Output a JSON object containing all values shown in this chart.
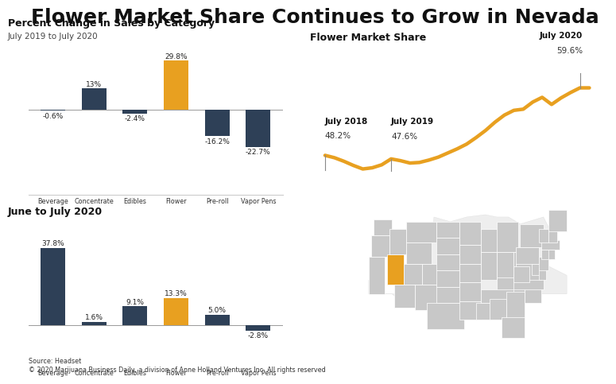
{
  "title": "Flower Market Share Continues to Grow in Nevada",
  "title_fontsize": 18,
  "background_color": "#ffffff",
  "dark_blue": "#2e4057",
  "orange": "#e8a020",
  "map_gray": "#c8c8c8",
  "bar_categories": [
    "Beverage",
    "Concentrate",
    "Edibles",
    "Flower",
    "Pre-roll",
    "Vapor Pens"
  ],
  "chart1_title": "Percent Change in Sales by Category",
  "chart1_subtitle": "July 2019 to July 2020",
  "chart1_values": [
    -0.6,
    13.0,
    -2.4,
    29.8,
    -16.2,
    -22.7
  ],
  "chart1_labels": [
    "-0.6%",
    "13%",
    "-2.4%",
    "29.8%",
    "-16.2%",
    "-22.7%"
  ],
  "chart2_title": "June to July 2020",
  "chart2_values": [
    37.8,
    1.6,
    9.1,
    13.3,
    5.0,
    -2.8
  ],
  "chart2_labels": [
    "37.8%",
    "1.6%",
    "9.1%",
    "13.3%",
    "5.0%",
    "-2.8%"
  ],
  "line_title": "Flower Market Share",
  "line_x": [
    0,
    1,
    2,
    3,
    4,
    5,
    6,
    7,
    8,
    9,
    10,
    11,
    12,
    13,
    14,
    15,
    16,
    17,
    18,
    19,
    20,
    21,
    22,
    23,
    24,
    25,
    26,
    27,
    28
  ],
  "line_y": [
    48.2,
    47.8,
    47.2,
    46.5,
    45.9,
    46.1,
    46.6,
    47.6,
    47.3,
    46.9,
    47.0,
    47.4,
    47.9,
    48.6,
    49.3,
    50.1,
    51.2,
    52.4,
    53.8,
    55.0,
    55.8,
    56.0,
    57.2,
    58.0,
    56.8,
    57.9,
    58.8,
    59.6,
    59.6
  ],
  "july2018_idx": 0,
  "july2019_idx": 7,
  "july2020_idx": 27,
  "july2018_val": 48.2,
  "july2019_val": 47.6,
  "july2020_val": 59.6,
  "source_text": "Source: Headset\n© 2020 Marijuana Business Daily, a division of Anne Holland Ventures Inc. All rights reserved"
}
